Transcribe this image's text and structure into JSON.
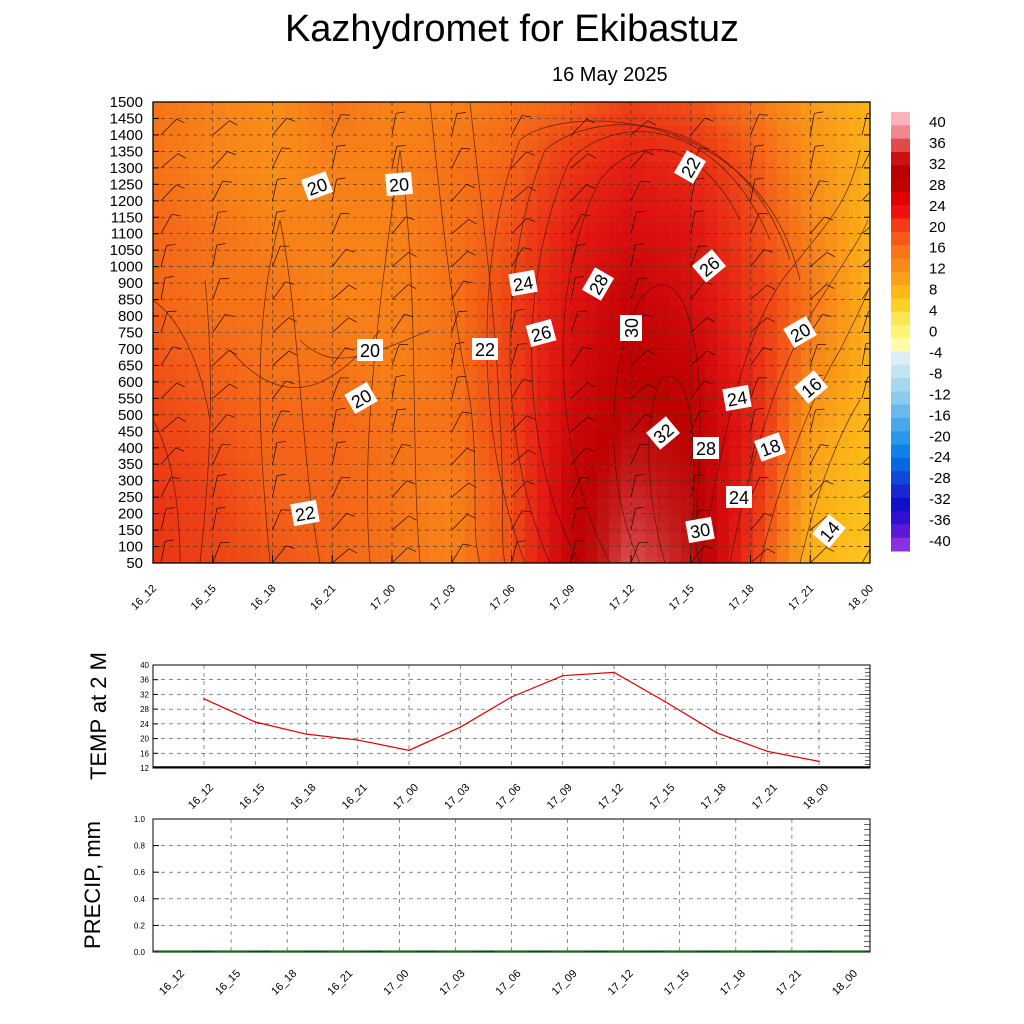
{
  "title": "Kazhydromet  for Ekibastuz",
  "date": "16 May 2025",
  "chart_data": [
    {
      "type": "heatmap",
      "x_ticks": [
        "16_12",
        "16_15",
        "16_18",
        "16_21",
        "17_00",
        "17_03",
        "17_06",
        "17_09",
        "17_12",
        "17_15",
        "17_18",
        "17_21",
        "18_00"
      ],
      "y_ticks": [
        1500,
        1450,
        1400,
        1350,
        1300,
        1250,
        1200,
        1150,
        1100,
        1050,
        1000,
        900,
        850,
        800,
        750,
        700,
        650,
        600,
        550,
        500,
        450,
        400,
        350,
        300,
        250,
        200,
        150,
        100,
        50
      ],
      "colorbar_labels": [
        "40",
        "36",
        "32",
        "28",
        "24",
        "20",
        "16",
        "12",
        "8",
        "4",
        "0",
        "-4",
        "-8",
        "-12",
        "-16",
        "-20",
        "-24",
        "-28",
        "-32",
        "-36",
        "-40"
      ],
      "colorbar_colors": [
        "#f8b4bc",
        "#f08890",
        "#e24a4a",
        "#cf1010",
        "#b80000",
        "#c00000",
        "#e00000",
        "#f01010",
        "#f43a16",
        "#f65a18",
        "#f87418",
        "#fa8a18",
        "#fba018",
        "#fdb818",
        "#fed020",
        "#fee650",
        "#fef478",
        "#fefca8",
        "#dceef8",
        "#c4e4f4",
        "#a8d8f0",
        "#8ccbee",
        "#6ab8ec",
        "#48a8ea",
        "#2898e8",
        "#0c82e6",
        "#0868e0",
        "#1048d8",
        "#1828d0",
        "#1010c8",
        "#3010d4",
        "#5a18d8",
        "#8a30e0"
      ],
      "contour_labels": [
        "20",
        "20",
        "20",
        "20",
        "22",
        "22",
        "24",
        "24",
        "26",
        "26",
        "28",
        "28",
        "30",
        "30",
        "32",
        "20",
        "24",
        "22",
        "18",
        "16",
        "14"
      ],
      "temperature_field": [
        [
          21,
          20,
          19,
          21,
          20,
          20,
          21,
          22,
          24,
          23,
          21,
          18,
          16
        ],
        [
          21,
          20,
          19,
          20,
          20,
          21,
          22,
          25,
          27,
          26,
          23,
          19,
          16
        ],
        [
          22,
          21,
          20,
          20,
          20,
          21,
          23,
          27,
          29,
          28,
          24,
          20,
          16
        ],
        [
          22,
          21,
          21,
          20,
          20,
          21,
          24,
          28,
          31,
          29,
          25,
          21,
          16
        ],
        [
          23,
          22,
          21,
          21,
          20,
          21,
          24,
          29,
          32,
          31,
          26,
          20,
          16
        ],
        [
          24,
          23,
          22,
          22,
          21,
          21,
          24,
          30,
          33,
          32,
          27,
          18,
          15
        ],
        [
          25,
          24,
          22,
          22,
          21,
          20,
          23,
          31,
          35,
          33,
          26,
          17,
          14
        ],
        [
          25,
          24,
          23,
          22,
          21,
          20,
          23,
          31,
          37,
          34,
          25,
          16,
          13
        ]
      ]
    },
    {
      "type": "line",
      "ylabel": "TEMP at 2 M",
      "x": [
        "16_12",
        "16_15",
        "16_18",
        "16_21",
        "17_00",
        "17_03",
        "17_06",
        "17_09",
        "17_12",
        "17_15",
        "17_18",
        "17_21",
        "18_00"
      ],
      "ylim": [
        12,
        40
      ],
      "y_ticks": [
        40,
        36,
        32,
        28,
        24,
        20,
        16,
        12
      ],
      "series": [
        {
          "values": [
            30.8,
            24.5,
            21.2,
            19.6,
            16.8,
            23.1,
            31.3,
            37.1,
            38.0,
            30.0,
            21.6,
            16.5,
            13.8
          ],
          "color": "#e00000"
        }
      ]
    },
    {
      "type": "bar",
      "ylabel": "PRECIP, mm",
      "x": [
        "16_12",
        "16_15",
        "16_18",
        "16_21",
        "17_00",
        "17_03",
        "17_06",
        "17_09",
        "17_12",
        "17_15",
        "17_18",
        "17_21",
        "18_00"
      ],
      "ylim": [
        0,
        1.0
      ],
      "y_ticks": [
        "1.0",
        "0.8",
        "0.6",
        "0.4",
        "0.2",
        "0.0"
      ],
      "values": [
        0,
        0,
        0,
        0,
        0,
        0,
        0,
        0,
        0,
        0,
        0,
        0,
        0
      ],
      "color": "#008000"
    }
  ]
}
